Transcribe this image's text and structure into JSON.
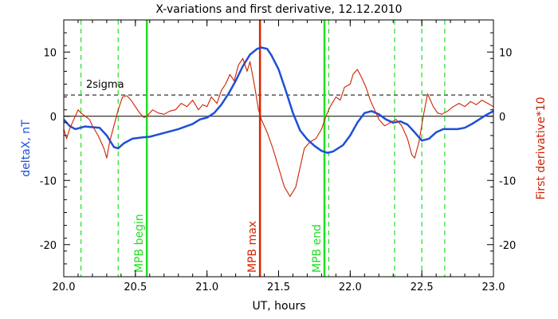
{
  "chart_data": {
    "type": "line",
    "title": "X-variations and first derivative, 12.12.2010",
    "xlabel": "UT, hours",
    "ylabel_left": "deltaX, nT",
    "ylabel_right": "First derivative*10",
    "xlim": [
      20.0,
      23.0
    ],
    "ylim": [
      -25,
      15
    ],
    "x_ticks": [
      "20.0",
      "20.5",
      "21.0",
      "21.5",
      "22.0",
      "22.5",
      "23.0"
    ],
    "y_ticks_left": [
      "-20",
      "-10",
      "0",
      "10"
    ],
    "y_ticks_right": [
      "-20",
      "-10",
      "0",
      "10"
    ],
    "grid": false,
    "colors": {
      "deltaX": "#1f4fd8",
      "derivative": "#cc2200",
      "mpb_green": "#22dd22",
      "mpb_max": "#dd2200",
      "dashed_green": "#22dd22",
      "reference": "#000000"
    },
    "series": [
      {
        "key": "deltaX",
        "values": [
          [
            20.0,
            -0.5
          ],
          [
            20.04,
            -1.5
          ],
          [
            20.08,
            -2.0
          ],
          [
            20.15,
            -1.6
          ],
          [
            20.25,
            -1.8
          ],
          [
            20.3,
            -3.0
          ],
          [
            20.35,
            -4.8
          ],
          [
            20.38,
            -5.0
          ],
          [
            20.42,
            -4.2
          ],
          [
            20.48,
            -3.5
          ],
          [
            20.55,
            -3.3
          ],
          [
            20.6,
            -3.2
          ],
          [
            20.7,
            -2.6
          ],
          [
            20.8,
            -2.0
          ],
          [
            20.9,
            -1.2
          ],
          [
            20.95,
            -0.5
          ],
          [
            21.0,
            -0.2
          ],
          [
            21.05,
            0.5
          ],
          [
            21.1,
            1.8
          ],
          [
            21.15,
            3.5
          ],
          [
            21.2,
            5.5
          ],
          [
            21.25,
            7.8
          ],
          [
            21.3,
            9.6
          ],
          [
            21.35,
            10.5
          ],
          [
            21.38,
            10.7
          ],
          [
            21.42,
            10.5
          ],
          [
            21.45,
            9.5
          ],
          [
            21.5,
            7.3
          ],
          [
            21.55,
            4.0
          ],
          [
            21.6,
            0.5
          ],
          [
            21.65,
            -2.2
          ],
          [
            21.7,
            -3.6
          ],
          [
            21.75,
            -4.6
          ],
          [
            21.8,
            -5.4
          ],
          [
            21.84,
            -5.7
          ],
          [
            21.88,
            -5.5
          ],
          [
            21.95,
            -4.5
          ],
          [
            22.0,
            -3.0
          ],
          [
            22.05,
            -1.0
          ],
          [
            22.1,
            0.5
          ],
          [
            22.15,
            0.8
          ],
          [
            22.2,
            0.3
          ],
          [
            22.25,
            -0.5
          ],
          [
            22.3,
            -1.0
          ],
          [
            22.35,
            -0.8
          ],
          [
            22.4,
            -1.3
          ],
          [
            22.45,
            -2.5
          ],
          [
            22.5,
            -3.8
          ],
          [
            22.55,
            -3.5
          ],
          [
            22.6,
            -2.5
          ],
          [
            22.65,
            -2.0
          ],
          [
            22.75,
            -2.0
          ],
          [
            22.8,
            -1.8
          ],
          [
            22.85,
            -1.2
          ],
          [
            22.9,
            -0.5
          ],
          [
            22.95,
            0.2
          ],
          [
            23.0,
            0.8
          ]
        ]
      },
      {
        "key": "derivative",
        "values": [
          [
            20.0,
            -2.0
          ],
          [
            20.02,
            -3.5
          ],
          [
            20.04,
            -2.0
          ],
          [
            20.06,
            -1.0
          ],
          [
            20.08,
            0.0
          ],
          [
            20.1,
            1.0
          ],
          [
            20.12,
            0.5
          ],
          [
            20.15,
            0.0
          ],
          [
            20.18,
            -0.5
          ],
          [
            20.2,
            -1.5
          ],
          [
            20.24,
            -3.0
          ],
          [
            20.28,
            -5.0
          ],
          [
            20.3,
            -6.5
          ],
          [
            20.32,
            -4.0
          ],
          [
            20.35,
            -1.5
          ],
          [
            20.38,
            1.0
          ],
          [
            20.41,
            3.0
          ],
          [
            20.44,
            3.2
          ],
          [
            20.47,
            2.5
          ],
          [
            20.5,
            1.5
          ],
          [
            20.53,
            0.5
          ],
          [
            20.56,
            -0.2
          ],
          [
            20.58,
            0.0
          ],
          [
            20.62,
            1.0
          ],
          [
            20.66,
            0.5
          ],
          [
            20.7,
            0.3
          ],
          [
            20.74,
            0.8
          ],
          [
            20.78,
            1.0
          ],
          [
            20.82,
            2.0
          ],
          [
            20.86,
            1.5
          ],
          [
            20.9,
            2.5
          ],
          [
            20.94,
            1.0
          ],
          [
            20.97,
            1.8
          ],
          [
            21.0,
            1.5
          ],
          [
            21.03,
            3.0
          ],
          [
            21.07,
            2.0
          ],
          [
            21.1,
            4.0
          ],
          [
            21.13,
            5.0
          ],
          [
            21.16,
            6.5
          ],
          [
            21.19,
            5.5
          ],
          [
            21.22,
            8.0
          ],
          [
            21.25,
            9.0
          ],
          [
            21.28,
            7.0
          ],
          [
            21.3,
            8.5
          ],
          [
            21.33,
            5.0
          ],
          [
            21.36,
            1.0
          ],
          [
            21.38,
            -0.5
          ],
          [
            21.42,
            -2.5
          ],
          [
            21.46,
            -5.0
          ],
          [
            21.5,
            -8.0
          ],
          [
            21.54,
            -11.0
          ],
          [
            21.58,
            -12.5
          ],
          [
            21.62,
            -11.0
          ],
          [
            21.65,
            -8.0
          ],
          [
            21.68,
            -5.0
          ],
          [
            21.72,
            -4.0
          ],
          [
            21.76,
            -3.5
          ],
          [
            21.8,
            -2.0
          ],
          [
            21.83,
            0.0
          ],
          [
            21.86,
            1.5
          ],
          [
            21.9,
            3.0
          ],
          [
            21.93,
            2.5
          ],
          [
            21.96,
            4.5
          ],
          [
            22.0,
            5.0
          ],
          [
            22.02,
            6.5
          ],
          [
            22.05,
            7.3
          ],
          [
            22.08,
            6.0
          ],
          [
            22.11,
            4.5
          ],
          [
            22.14,
            2.5
          ],
          [
            22.17,
            1.0
          ],
          [
            22.2,
            -0.5
          ],
          [
            22.24,
            -1.5
          ],
          [
            22.28,
            -1.0
          ],
          [
            22.32,
            -0.5
          ],
          [
            22.36,
            -1.5
          ],
          [
            22.4,
            -3.5
          ],
          [
            22.43,
            -6.0
          ],
          [
            22.45,
            -6.5
          ],
          [
            22.48,
            -4.0
          ],
          [
            22.51,
            0.0
          ],
          [
            22.54,
            3.5
          ],
          [
            22.56,
            2.5
          ],
          [
            22.58,
            1.5
          ],
          [
            22.61,
            0.5
          ],
          [
            22.64,
            0.3
          ],
          [
            22.68,
            0.8
          ],
          [
            22.72,
            1.5
          ],
          [
            22.76,
            2.0
          ],
          [
            22.8,
            1.5
          ],
          [
            22.84,
            2.3
          ],
          [
            22.88,
            1.8
          ],
          [
            22.92,
            2.5
          ],
          [
            22.96,
            2.0
          ],
          [
            23.0,
            1.5
          ]
        ]
      }
    ],
    "reference_lines": [
      {
        "key": "zero",
        "y": 0,
        "style": "solid"
      },
      {
        "key": "two_sigma",
        "y": 3.3,
        "style": "dashed",
        "label": "2sigma"
      }
    ],
    "vertical_lines": [
      {
        "x": 20.12,
        "style": "dashed",
        "color_key": "dashed_green"
      },
      {
        "x": 20.38,
        "style": "dashed",
        "color_key": "dashed_green"
      },
      {
        "x": 20.58,
        "style": "solid",
        "color_key": "mpb_green",
        "label": "MPB begin"
      },
      {
        "x": 21.37,
        "style": "solid",
        "color_key": "mpb_max",
        "label": "MPB max"
      },
      {
        "x": 21.82,
        "style": "solid",
        "color_key": "mpb_green",
        "label": "MPB end"
      },
      {
        "x": 21.85,
        "style": "dashed",
        "color_key": "dashed_green"
      },
      {
        "x": 22.31,
        "style": "dashed",
        "color_key": "dashed_green"
      },
      {
        "x": 22.5,
        "style": "dashed",
        "color_key": "dashed_green"
      },
      {
        "x": 22.66,
        "style": "dashed",
        "color_key": "dashed_green"
      }
    ]
  }
}
